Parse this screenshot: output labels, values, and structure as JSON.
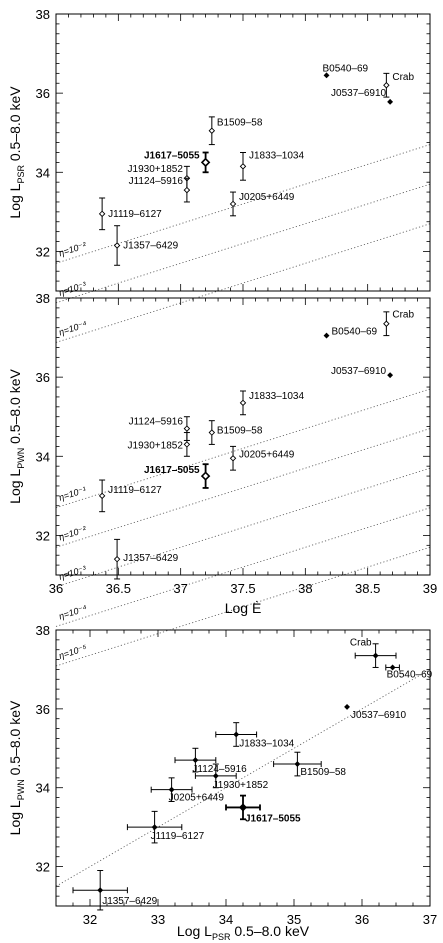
{
  "chart_data": [
    {
      "type": "scatter",
      "xlabel": "",
      "ylabel_main": "Log L",
      "ylabel_sub": "PSR",
      "ylabel_tail": " 0.5–8.0 keV",
      "xlim": [
        36,
        39
      ],
      "ylim": [
        31,
        38
      ],
      "xticks": [
        36,
        36.5,
        37,
        37.5,
        38,
        38.5,
        39
      ],
      "yticks": [
        32,
        34,
        36,
        38
      ],
      "ytick_labels": [
        "32",
        "34",
        "36",
        "38"
      ],
      "points": [
        {
          "name": "B0540–69",
          "x": 38.17,
          "y": 36.45,
          "yerr": 0.0,
          "marker": "filled"
        },
        {
          "name": "Crab",
          "x": 38.65,
          "y": 36.2,
          "yerr": 0.3,
          "marker": "diamond"
        },
        {
          "name": "J0537–6910",
          "x": 38.68,
          "y": 35.78,
          "yerr": 0.0,
          "marker": "filled"
        },
        {
          "name": "B1509–58",
          "x": 37.25,
          "y": 35.05,
          "yerr": 0.35,
          "marker": "diamond"
        },
        {
          "name": "J1617–5055",
          "x": 37.2,
          "y": 34.25,
          "yerr": 0.25,
          "marker": "diamond",
          "bold": true
        },
        {
          "name": "J1833–1034",
          "x": 37.5,
          "y": 34.15,
          "yerr": 0.35,
          "marker": "diamond"
        },
        {
          "name": "J1930+1852",
          "x": 37.05,
          "y": 33.85,
          "yerr": 0.3,
          "marker": "diamond"
        },
        {
          "name": "J1124–5916",
          "x": 37.05,
          "y": 33.55,
          "yerr": 0.3,
          "marker": "diamond"
        },
        {
          "name": "J0205+6449",
          "x": 37.42,
          "y": 33.2,
          "yerr": 0.3,
          "marker": "diamond"
        },
        {
          "name": "J1119–6127",
          "x": 36.37,
          "y": 32.95,
          "yerr": 0.4,
          "marker": "diamond"
        },
        {
          "name": "J1357–6429",
          "x": 36.49,
          "y": 32.15,
          "yerr": 0.5,
          "marker": "diamond"
        }
      ],
      "eta_lines": [
        "η=10⁻²",
        "η=10⁻³",
        "η=10⁻⁴"
      ]
    },
    {
      "type": "scatter",
      "xlabel": "Log Ė",
      "ylabel_main": "Log L",
      "ylabel_sub": "PWN",
      "ylabel_tail": " 0.5–8.0 keV",
      "xlim": [
        36,
        39
      ],
      "ylim": [
        31,
        38
      ],
      "xticks": [
        36,
        36.5,
        37,
        37.5,
        38,
        38.5,
        39
      ],
      "xtick_labels": [
        "36",
        "36.5",
        "37",
        "37.5",
        "38",
        "38.5",
        "39"
      ],
      "yticks": [
        32,
        34,
        36,
        38
      ],
      "ytick_labels": [
        "32",
        "34",
        "36",
        "38"
      ],
      "points": [
        {
          "name": "Crab",
          "x": 38.65,
          "y": 37.35,
          "yerr": 0.3,
          "marker": "diamond"
        },
        {
          "name": "B0540–69",
          "x": 38.17,
          "y": 37.05,
          "yerr": 0.0,
          "marker": "filled"
        },
        {
          "name": "J0537–6910",
          "x": 38.68,
          "y": 36.05,
          "yerr": 0.0,
          "marker": "filled"
        },
        {
          "name": "J1833–1034",
          "x": 37.5,
          "y": 35.35,
          "yerr": 0.3,
          "marker": "diamond"
        },
        {
          "name": "J1124–5916",
          "x": 37.05,
          "y": 34.7,
          "yerr": 0.3,
          "marker": "diamond"
        },
        {
          "name": "B1509–58",
          "x": 37.25,
          "y": 34.6,
          "yerr": 0.3,
          "marker": "diamond"
        },
        {
          "name": "J1930+1852",
          "x": 37.05,
          "y": 34.3,
          "yerr": 0.3,
          "marker": "diamond"
        },
        {
          "name": "J0205+6449",
          "x": 37.42,
          "y": 33.95,
          "yerr": 0.3,
          "marker": "diamond"
        },
        {
          "name": "J1617–5055",
          "x": 37.2,
          "y": 33.5,
          "yerr": 0.3,
          "marker": "diamond",
          "bold": true
        },
        {
          "name": "J1119–6127",
          "x": 36.37,
          "y": 33.0,
          "yerr": 0.4,
          "marker": "diamond"
        },
        {
          "name": "J1357–6429",
          "x": 36.49,
          "y": 31.4,
          "yerr": 0.5,
          "marker": "diamond"
        }
      ],
      "eta_lines": [
        "η=10⁻¹",
        "η=10⁻²",
        "η=10⁻³",
        "η=10⁻⁴",
        "η=10⁻⁵"
      ]
    },
    {
      "type": "scatter",
      "xlabel_main": "Log L",
      "xlabel_sub": "PSR",
      "xlabel_tail": " 0.5–8.0 keV",
      "ylabel_main": "Log L",
      "ylabel_sub": "PWN",
      "ylabel_tail": " 0.5–8.0 keV",
      "xlim": [
        31.5,
        37
      ],
      "ylim": [
        31,
        38
      ],
      "xticks": [
        32,
        33,
        34,
        35,
        36,
        37
      ],
      "xtick_labels": [
        "32",
        "33",
        "34",
        "35",
        "36",
        "37"
      ],
      "yticks": [
        32,
        34,
        36,
        38
      ],
      "ytick_labels": [
        "32",
        "34",
        "36",
        "38"
      ],
      "points": [
        {
          "name": "Crab",
          "x": 36.2,
          "y": 37.35,
          "xerr": 0.3,
          "yerr": 0.3,
          "marker": "filled"
        },
        {
          "name": "B0540–69",
          "x": 36.45,
          "y": 37.05,
          "xerr": 0.1,
          "yerr": 0.0,
          "marker": "filled"
        },
        {
          "name": "J0537–6910",
          "x": 35.78,
          "y": 36.05,
          "xerr": 0.0,
          "yerr": 0.0,
          "marker": "filled"
        },
        {
          "name": "J1833–1034",
          "x": 34.15,
          "y": 35.35,
          "xerr": 0.3,
          "yerr": 0.3,
          "marker": "filled"
        },
        {
          "name": "J1124–5916",
          "x": 33.55,
          "y": 34.7,
          "xerr": 0.3,
          "yerr": 0.3,
          "marker": "filled"
        },
        {
          "name": "B1509–58",
          "x": 35.05,
          "y": 34.6,
          "xerr": 0.35,
          "yerr": 0.3,
          "marker": "filled"
        },
        {
          "name": "J1930+1852",
          "x": 33.85,
          "y": 34.3,
          "xerr": 0.3,
          "yerr": 0.3,
          "marker": "filled"
        },
        {
          "name": "J0205+6449",
          "x": 33.2,
          "y": 33.95,
          "xerr": 0.3,
          "yerr": 0.3,
          "marker": "filled"
        },
        {
          "name": "J1617–5055",
          "x": 34.25,
          "y": 33.5,
          "xerr": 0.25,
          "yerr": 0.3,
          "marker": "filled",
          "bold": true
        },
        {
          "name": "J1119–6127",
          "x": 32.95,
          "y": 33.0,
          "xerr": 0.4,
          "yerr": 0.4,
          "marker": "filled"
        },
        {
          "name": "J1357–6429",
          "x": 32.15,
          "y": 31.4,
          "xerr": 0.4,
          "yerr": 0.5,
          "marker": "filled"
        }
      ],
      "fit_line": {
        "x": [
          31.5,
          37.0
        ],
        "y": [
          31.5,
          37.0
        ]
      }
    }
  ]
}
